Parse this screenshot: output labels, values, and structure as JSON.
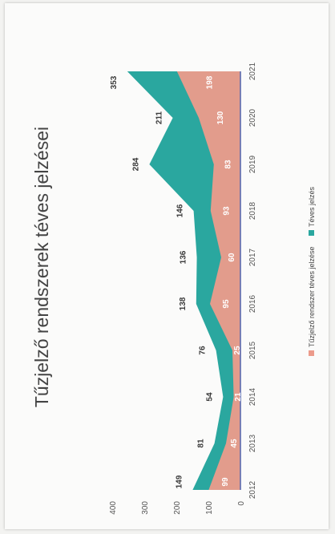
{
  "colors": {
    "series1": "#ec9b8b",
    "series2": "#2aa79f",
    "axis": "#5a6ab0"
  },
  "chart_data": {
    "type": "area",
    "title": "Tűzjelző rendszerek téves jelzései",
    "x": [
      "2012",
      "2013",
      "2014",
      "2015",
      "2016",
      "2017",
      "2018",
      "2019",
      "2020",
      "2021"
    ],
    "ylim": [
      0,
      400
    ],
    "yticks": [
      0,
      100,
      200,
      300,
      400
    ],
    "series": [
      {
        "name": "Tűzjelző rendszer téves jelzése",
        "values": [
          99,
          45,
          21,
          25,
          95,
          60,
          93,
          83,
          130,
          198
        ],
        "labels": [
          "99",
          "45",
          "21",
          "25",
          "95",
          "60",
          "93",
          "83",
          "130",
          "198"
        ]
      },
      {
        "name": "Téves jelzés",
        "values": [
          149,
          81,
          54,
          76,
          138,
          136,
          146,
          284,
          211,
          353
        ],
        "labels": [
          "149",
          "81",
          "54",
          "76",
          "138",
          "136",
          "146",
          "284",
          "211",
          "353"
        ]
      }
    ],
    "legend_position": "bottom",
    "rotation": "chart rotated 90 degrees counter-clockwise"
  }
}
